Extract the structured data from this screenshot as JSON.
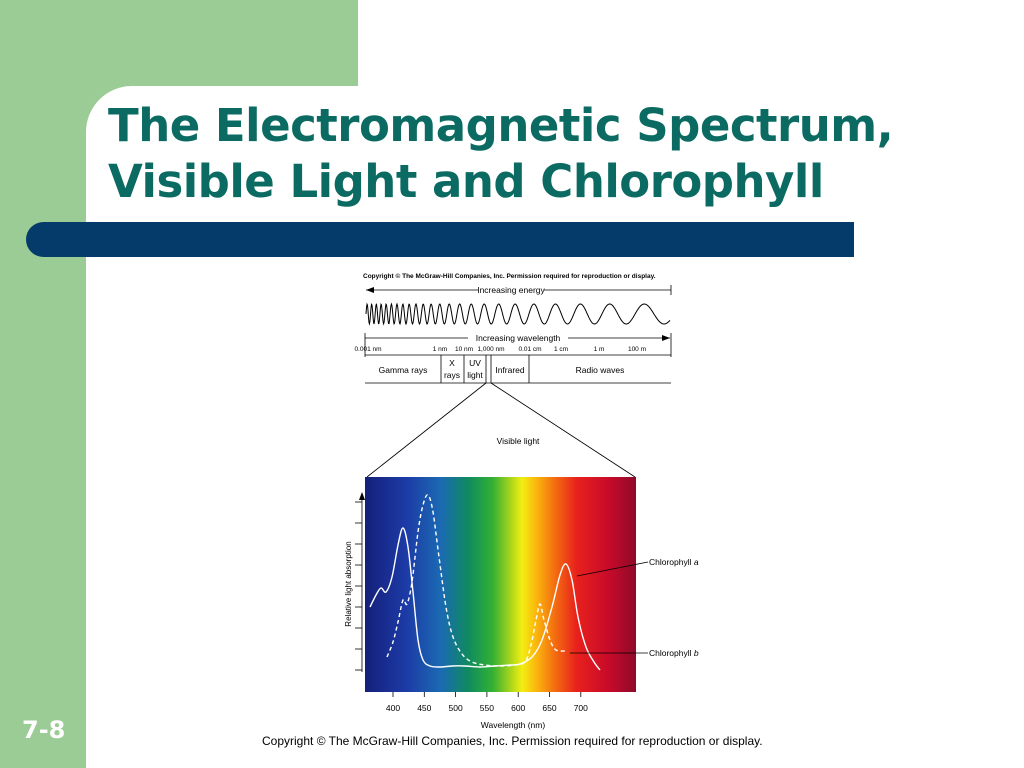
{
  "slide": {
    "title_line1": "The Electromagnetic Spectrum,",
    "title_line2": "Visible Light and Chlorophyll",
    "number": "7-8",
    "footer": "Copyright © The McGraw-Hill Companies, Inc. Permission required for reproduction or display."
  },
  "figure": {
    "copyright": "Copyright © The McGraw-Hill Companies, Inc. Permission required for reproduction or display.",
    "energy_label": "Increasing energy",
    "wavelength_label": "Increasing wavelength",
    "scale_ticks": [
      "0.001 nm",
      "1 nm",
      "10 nm",
      "1,000 nm",
      "0.01 cm",
      "1 cm",
      "1 m",
      "100 m"
    ],
    "regions": {
      "gamma": "Gamma rays",
      "x_line1": "X",
      "x_line2": "rays",
      "uv_line1": "UV",
      "uv_line2": "light",
      "infrared": "Infrared",
      "radio": "Radio waves"
    },
    "visible_label": "Visible light",
    "ylabel": "Relative light absorption",
    "xlabel": "Wavelength (nm)",
    "x_ticks": [
      "400",
      "450",
      "500",
      "550",
      "600",
      "650",
      "700"
    ],
    "chl_a_name": "Chlorophyll ",
    "chl_a_letter": "a",
    "chl_b_name": "Chlorophyll ",
    "chl_b_letter": "b"
  },
  "colors": {
    "title": "#0b6b63",
    "green": "#9ccc95",
    "bar": "#053b6b"
  }
}
